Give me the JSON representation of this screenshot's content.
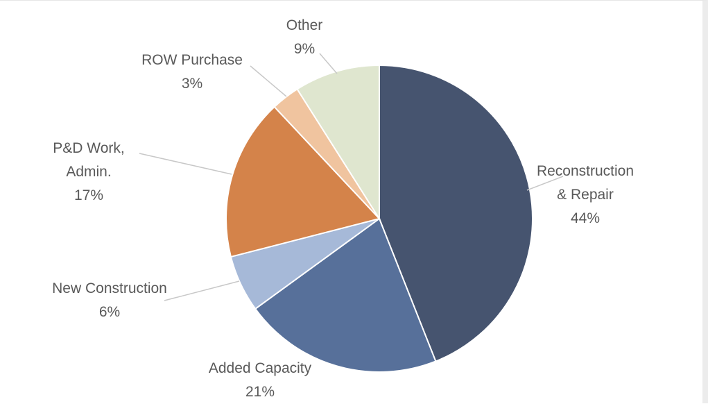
{
  "chart_data": {
    "type": "pie",
    "title": "",
    "start_angle_deg": 0,
    "direction": "clockwise",
    "slices": [
      {
        "label": "Reconstruction & Repair",
        "label_lines": [
          "Reconstruction",
          "& Repair"
        ],
        "value": 44,
        "value_label": "44%",
        "color": "#46546f"
      },
      {
        "label": "Added Capacity",
        "label_lines": [
          "Added Capacity"
        ],
        "value": 21,
        "value_label": "21%",
        "color": "#57709a"
      },
      {
        "label": "New Construction",
        "label_lines": [
          "New Construction"
        ],
        "value": 6,
        "value_label": "6%",
        "color": "#a6b9d8"
      },
      {
        "label": "P&D Work, Admin.",
        "label_lines": [
          "P&D Work,",
          "Admin."
        ],
        "value": 17,
        "value_label": "17%",
        "color": "#d4834a"
      },
      {
        "label": "ROW Purchase",
        "label_lines": [
          "ROW Purchase"
        ],
        "value": 3,
        "value_label": "3%",
        "color": "#f0c49f"
      },
      {
        "label": "Other",
        "label_lines": [
          "Other"
        ],
        "value": 9,
        "value_label": "9%",
        "color": "#dfe6cf"
      }
    ]
  }
}
